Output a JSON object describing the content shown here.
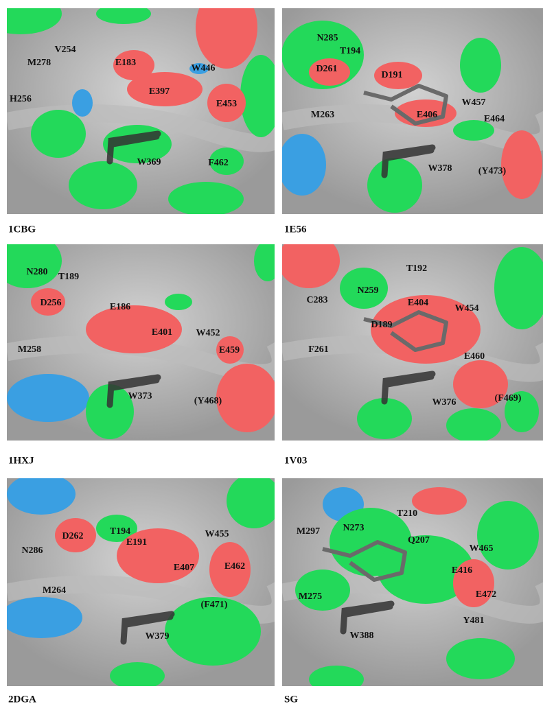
{
  "panels": [
    {
      "caption": "1CBG",
      "residues": [
        "V254",
        "M278",
        "E183",
        "W446",
        "E397",
        "H256",
        "E453",
        "W369",
        "F462"
      ]
    },
    {
      "caption": "1E56",
      "residues": [
        "N285",
        "T194",
        "D261",
        "D191",
        "W457",
        "M263",
        "E406",
        "E464",
        "W378",
        "(Y473)"
      ]
    },
    {
      "caption": "1HXJ",
      "residues": [
        "N280",
        "T189",
        "D256",
        "E186",
        "E401",
        "W452",
        "M258",
        "E459",
        "W373",
        "(Y468)"
      ]
    },
    {
      "caption": "1V03",
      "residues": [
        "T192",
        "N259",
        "C283",
        "E404",
        "W454",
        "D189",
        "F261",
        "E460",
        "W376",
        "(F469)"
      ]
    },
    {
      "caption": "2DGA",
      "residues": [
        "D262",
        "T194",
        "W455",
        "E191",
        "N286",
        "E407",
        "E462",
        "M264",
        "(F471)",
        "W379"
      ]
    },
    {
      "caption": "SG",
      "residues": [
        "T210",
        "M297",
        "N273",
        "Q207",
        "W465",
        "E416",
        "M275",
        "E472",
        "Y481",
        "W388"
      ]
    }
  ]
}
